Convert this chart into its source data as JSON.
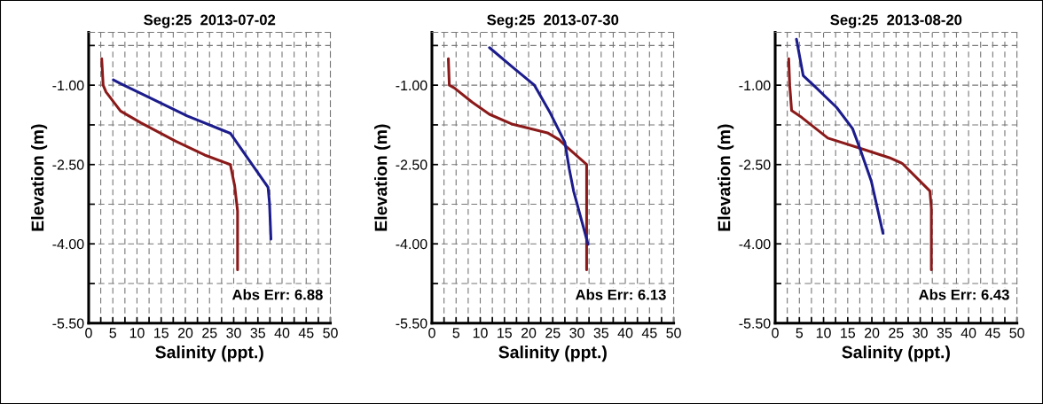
{
  "chart_data": [
    {
      "type": "line",
      "title": "Seg:25  2013-07-02",
      "xlabel": "Salinity (ppt.)",
      "ylabel": "Elevation (m)",
      "xlim": [
        0,
        50
      ],
      "ylim": [
        -5.5,
        0
      ],
      "xticks": [
        0,
        {
          "value": 2.5,
          "label": null
        },
        5,
        {
          "value": 7.5,
          "label": null
        },
        10,
        {
          "value": 12.5,
          "label": null
        },
        15,
        {
          "value": 17.5,
          "label": null
        },
        20,
        {
          "value": 22.5,
          "label": null
        },
        25,
        {
          "value": 27.5,
          "label": null
        },
        30,
        {
          "value": 32.5,
          "label": null
        },
        35,
        {
          "value": 37.5,
          "label": null
        },
        40,
        {
          "value": 42.5,
          "label": null
        },
        45,
        {
          "value": 47.5,
          "label": null
        },
        50
      ],
      "yticks": [
        {
          "value": -5.5,
          "label": "-5.50"
        },
        {
          "value": -4.75,
          "label": null
        },
        {
          "value": -4.0,
          "label": "-4.00"
        },
        {
          "value": -3.25,
          "label": null
        },
        {
          "value": -2.5,
          "label": "-2.50"
        },
        {
          "value": -1.75,
          "label": null
        },
        {
          "value": -1.0,
          "label": "-1.00"
        },
        {
          "value": -0.25,
          "label": null
        }
      ],
      "grid": true,
      "annotations": [
        "Abs Err: 6.88"
      ],
      "series": [
        {
          "color": "#8b1a1a",
          "x": [
            2.7,
            3.0,
            3.6,
            6.6,
            10.8,
            18,
            24,
            29.3,
            30.2,
            30.8,
            30.8
          ],
          "values": [
            -0.5,
            -1.0,
            -1.13,
            -1.49,
            -1.71,
            -2.06,
            -2.32,
            -2.5,
            -2.9,
            -3.38,
            -4.49
          ]
        },
        {
          "color": "#1c1c8c",
          "x": [
            5.1,
            6.6,
            12,
            20.4,
            29.3,
            37.1,
            37.4,
            37.7
          ],
          "values": [
            -0.9,
            -0.97,
            -1.21,
            -1.58,
            -1.91,
            -2.93,
            -3.22,
            -3.91
          ]
        }
      ]
    },
    {
      "type": "line",
      "title": "Seg:25  2013-07-30",
      "xlabel": "Salinity (ppt.)",
      "ylabel": "Elevation (m)",
      "xlim": [
        0,
        50
      ],
      "ylim": [
        -5.5,
        0
      ],
      "xticks": [
        0,
        {
          "value": 2.5,
          "label": null
        },
        5,
        {
          "value": 7.5,
          "label": null
        },
        10,
        {
          "value": 12.5,
          "label": null
        },
        15,
        {
          "value": 17.5,
          "label": null
        },
        20,
        {
          "value": 22.5,
          "label": null
        },
        25,
        {
          "value": 27.5,
          "label": null
        },
        30,
        {
          "value": 32.5,
          "label": null
        },
        35,
        {
          "value": 37.5,
          "label": null
        },
        40,
        {
          "value": 42.5,
          "label": null
        },
        45,
        {
          "value": 47.5,
          "label": null
        },
        50
      ],
      "yticks": [
        {
          "value": -5.5,
          "label": "-5.50"
        },
        {
          "value": -4.75,
          "label": null
        },
        {
          "value": -4.0,
          "label": "-4.00"
        },
        {
          "value": -3.25,
          "label": null
        },
        {
          "value": -2.5,
          "label": "-2.50"
        },
        {
          "value": -1.75,
          "label": null
        },
        {
          "value": -1.0,
          "label": "-1.00"
        },
        {
          "value": -0.25,
          "label": null
        }
      ],
      "grid": true,
      "annotations": [
        "Abs Err: 6.13"
      ],
      "series": [
        {
          "color": "#8b1a1a",
          "x": [
            3.4,
            3.6,
            4.6,
            8.3,
            11.9,
            16.7,
            23.9,
            26.3,
            27.8,
            32,
            32
          ],
          "values": [
            -0.5,
            -1.0,
            -1.05,
            -1.32,
            -1.55,
            -1.74,
            -1.9,
            -2.03,
            -2.16,
            -2.5,
            -4.49
          ]
        },
        {
          "color": "#1c1c8c",
          "x": [
            11.9,
            16.7,
            21.2,
            24.5,
            27.5,
            28.4,
            29.3,
            32.3
          ],
          "values": [
            -0.29,
            -0.66,
            -1.0,
            -1.53,
            -2.08,
            -2.58,
            -3.0,
            -4.01
          ]
        }
      ]
    },
    {
      "type": "line",
      "title": "Seg:25  2013-08-20",
      "xlabel": "Salinity (ppt.)",
      "ylabel": "Elevation (m)",
      "xlim": [
        0,
        50
      ],
      "ylim": [
        -5.5,
        0
      ],
      "xticks": [
        0,
        {
          "value": 2.5,
          "label": null
        },
        5,
        {
          "value": 7.5,
          "label": null
        },
        10,
        {
          "value": 12.5,
          "label": null
        },
        15,
        {
          "value": 17.5,
          "label": null
        },
        20,
        {
          "value": 22.5,
          "label": null
        },
        25,
        {
          "value": 27.5,
          "label": null
        },
        30,
        {
          "value": 32.5,
          "label": null
        },
        35,
        {
          "value": 37.5,
          "label": null
        },
        40,
        {
          "value": 42.5,
          "label": null
        },
        45,
        {
          "value": 47.5,
          "label": null
        },
        50
      ],
      "yticks": [
        {
          "value": -5.5,
          "label": "-5.50"
        },
        {
          "value": -4.75,
          "label": null
        },
        {
          "value": -4.0,
          "label": "-4.00"
        },
        {
          "value": -3.25,
          "label": null
        },
        {
          "value": -2.5,
          "label": "-2.50"
        },
        {
          "value": -1.75,
          "label": null
        },
        {
          "value": -1.0,
          "label": "-1.00"
        },
        {
          "value": -0.25,
          "label": null
        }
      ],
      "grid": true,
      "annotations": [
        "Abs Err: 6.43"
      ],
      "series": [
        {
          "color": "#8b1a1a",
          "x": [
            2.8,
            3.0,
            3.4,
            5.5,
            10.9,
            17.5,
            23.6,
            26.3,
            32,
            32.3,
            32.3
          ],
          "values": [
            -0.5,
            -1.0,
            -1.48,
            -1.61,
            -2.0,
            -2.19,
            -2.37,
            -2.48,
            -3.0,
            -3.32,
            -4.49
          ]
        },
        {
          "color": "#1c1c8c",
          "x": [
            4.4,
            5.8,
            8.5,
            12.7,
            16,
            17.5,
            19.9,
            22.3
          ],
          "values": [
            -0.13,
            -0.82,
            -1.05,
            -1.42,
            -1.82,
            -2.19,
            -2.82,
            -3.8
          ]
        }
      ]
    }
  ]
}
